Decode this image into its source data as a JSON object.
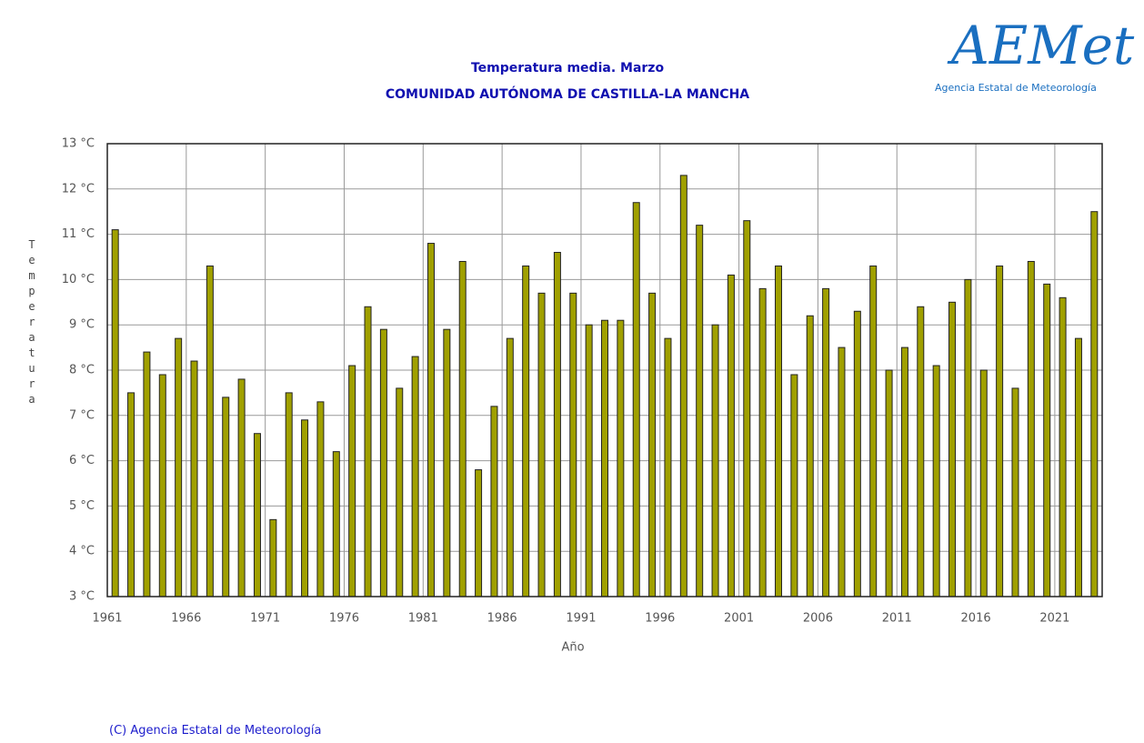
{
  "chart_data": {
    "type": "bar",
    "title": "Temperatura media. Marzo",
    "subtitle": "COMUNIDAD AUTÓNOMA DE CASTILLA-LA MANCHA",
    "x_label": "Año",
    "y_label": "Temperatura",
    "x": [
      1961,
      1962,
      1963,
      1964,
      1965,
      1966,
      1967,
      1968,
      1969,
      1970,
      1971,
      1972,
      1973,
      1974,
      1975,
      1976,
      1977,
      1978,
      1979,
      1980,
      1981,
      1982,
      1983,
      1984,
      1985,
      1986,
      1987,
      1988,
      1989,
      1990,
      1991,
      1992,
      1993,
      1994,
      1995,
      1996,
      1997,
      1998,
      1999,
      2000,
      2001,
      2002,
      2003,
      2004,
      2005,
      2006,
      2007,
      2008,
      2009,
      2010,
      2011,
      2012,
      2013,
      2014,
      2015,
      2016,
      2017,
      2018,
      2019,
      2020,
      2021,
      2022,
      2023
    ],
    "values": [
      11.1,
      7.5,
      8.4,
      7.9,
      8.7,
      8.2,
      10.3,
      7.4,
      7.8,
      6.6,
      4.7,
      7.5,
      6.9,
      7.3,
      6.2,
      8.1,
      9.4,
      8.9,
      7.6,
      8.3,
      10.8,
      8.9,
      10.4,
      5.8,
      7.2,
      8.7,
      10.3,
      9.7,
      10.6,
      9.7,
      9.0,
      9.1,
      9.1,
      11.7,
      9.7,
      8.7,
      12.3,
      11.2,
      9.0,
      10.1,
      11.3,
      9.8,
      10.3,
      7.9,
      9.2,
      9.8,
      8.5,
      9.3,
      10.3,
      8.0,
      8.5,
      9.4,
      8.1,
      9.5,
      10.0,
      8.0,
      10.3,
      7.6,
      10.4,
      9.9,
      9.6,
      8.7,
      11.5
    ],
    "color": "#a0a000",
    "xlim": [
      1961,
      2024
    ],
    "xticks": [
      1961,
      1966,
      1971,
      1976,
      1981,
      1986,
      1991,
      1996,
      2001,
      2006,
      2011,
      2016,
      2021
    ],
    "ylim": [
      3,
      13
    ],
    "yticks": [
      {
        "value": 3,
        "label": "3 °C"
      },
      {
        "value": 4,
        "label": "4 °C"
      },
      {
        "value": 5,
        "label": "5 °C"
      },
      {
        "value": 6,
        "label": "6 °C"
      },
      {
        "value": 7,
        "label": "7 °C"
      },
      {
        "value": 8,
        "label": "8 °C"
      },
      {
        "value": 9,
        "label": "9 °C"
      },
      {
        "value": 10,
        "label": "10 °C"
      },
      {
        "value": 11,
        "label": "11 °C"
      },
      {
        "value": 12,
        "label": "12 °C"
      },
      {
        "value": 13,
        "label": "13 °C"
      }
    ],
    "grid": true
  },
  "logo": {
    "name": "AEMet",
    "tagline": "Agencia Estatal de Meteorología"
  },
  "footer": "(C) Agencia Estatal de Meteorología"
}
